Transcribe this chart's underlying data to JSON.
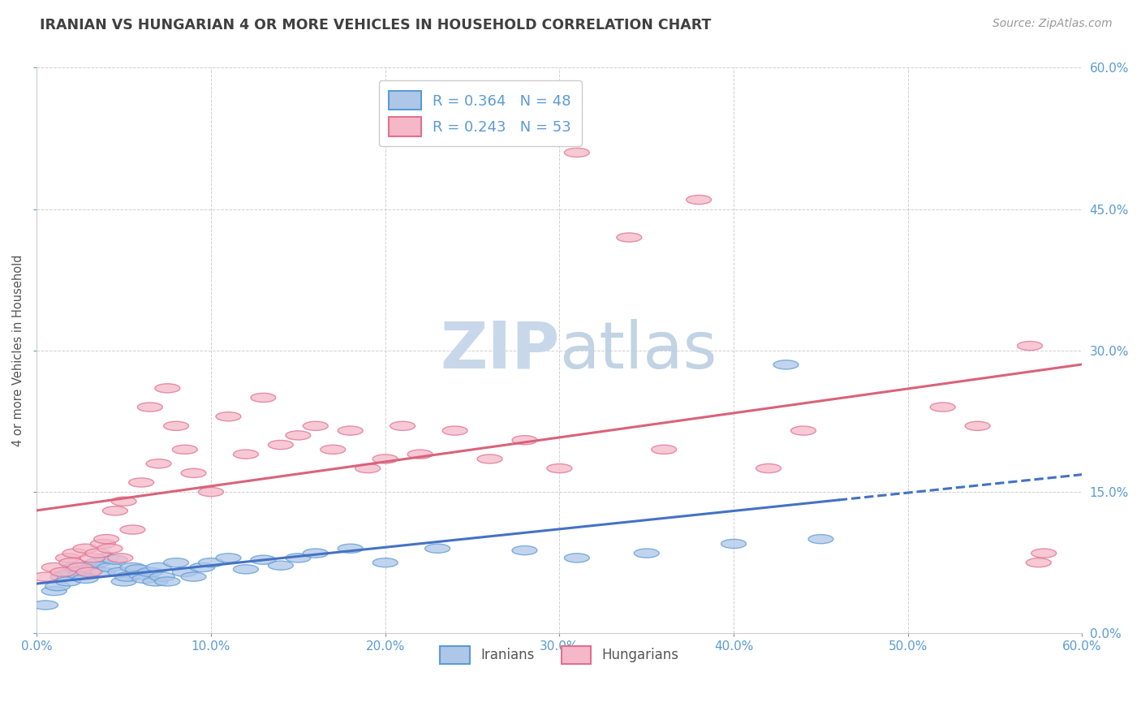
{
  "title": "IRANIAN VS HUNGARIAN 4 OR MORE VEHICLES IN HOUSEHOLD CORRELATION CHART",
  "source_text": "Source: ZipAtlas.com",
  "ylabel": "4 or more Vehicles in Household",
  "xlim": [
    0.0,
    0.6
  ],
  "ylim": [
    0.0,
    0.6
  ],
  "yticks": [
    0.0,
    0.15,
    0.3,
    0.45,
    0.6
  ],
  "xticks": [
    0.0,
    0.1,
    0.2,
    0.3,
    0.4,
    0.5,
    0.6
  ],
  "iranian_color_fill": "#aec6e8",
  "iranian_color_edge": "#5b9bd5",
  "hungarian_color_fill": "#f4b8c8",
  "hungarian_color_edge": "#e07090",
  "trend_iranian_color": "#4472c4",
  "trend_hungarian_color": "#d9637a",
  "background_color": "#ffffff",
  "grid_color": "#d0d0d0",
  "title_color": "#404040",
  "tick_color": "#5b9bd5",
  "watermark_text": "ZIPatlas",
  "watermark_color": "#cdd9e8",
  "legend_label_iranian": "R = 0.364   N = 48",
  "legend_label_hungarian": "R = 0.243   N = 53",
  "iranians_label": "Iranians",
  "hungarians_label": "Hungarians",
  "iranian_x": [
    0.005,
    0.01,
    0.012,
    0.015,
    0.018,
    0.02,
    0.022,
    0.025,
    0.028,
    0.03,
    0.032,
    0.035,
    0.038,
    0.04,
    0.042,
    0.045,
    0.048,
    0.05,
    0.052,
    0.055,
    0.058,
    0.06,
    0.062,
    0.065,
    0.068,
    0.07,
    0.072,
    0.075,
    0.08,
    0.085,
    0.09,
    0.095,
    0.1,
    0.11,
    0.12,
    0.13,
    0.14,
    0.15,
    0.16,
    0.18,
    0.2,
    0.23,
    0.28,
    0.31,
    0.35,
    0.4,
    0.43,
    0.45
  ],
  "iranian_y": [
    0.03,
    0.045,
    0.05,
    0.06,
    0.055,
    0.065,
    0.07,
    0.062,
    0.058,
    0.072,
    0.068,
    0.075,
    0.065,
    0.08,
    0.07,
    0.078,
    0.065,
    0.055,
    0.06,
    0.07,
    0.068,
    0.062,
    0.058,
    0.065,
    0.055,
    0.07,
    0.06,
    0.055,
    0.075,
    0.065,
    0.06,
    0.07,
    0.075,
    0.08,
    0.068,
    0.078,
    0.072,
    0.08,
    0.085,
    0.09,
    0.075,
    0.09,
    0.088,
    0.08,
    0.085,
    0.095,
    0.285,
    0.1
  ],
  "hungarian_x": [
    0.005,
    0.01,
    0.015,
    0.018,
    0.02,
    0.022,
    0.025,
    0.028,
    0.03,
    0.032,
    0.035,
    0.038,
    0.04,
    0.042,
    0.045,
    0.048,
    0.05,
    0.055,
    0.06,
    0.065,
    0.07,
    0.075,
    0.08,
    0.085,
    0.09,
    0.1,
    0.11,
    0.12,
    0.13,
    0.14,
    0.15,
    0.16,
    0.17,
    0.18,
    0.19,
    0.2,
    0.21,
    0.22,
    0.24,
    0.26,
    0.28,
    0.3,
    0.31,
    0.34,
    0.36,
    0.38,
    0.42,
    0.44,
    0.52,
    0.54,
    0.57,
    0.575,
    0.578
  ],
  "hungarian_y": [
    0.06,
    0.07,
    0.065,
    0.08,
    0.075,
    0.085,
    0.07,
    0.09,
    0.065,
    0.08,
    0.085,
    0.095,
    0.1,
    0.09,
    0.13,
    0.08,
    0.14,
    0.11,
    0.16,
    0.24,
    0.18,
    0.26,
    0.22,
    0.195,
    0.17,
    0.15,
    0.23,
    0.19,
    0.25,
    0.2,
    0.21,
    0.22,
    0.195,
    0.215,
    0.175,
    0.185,
    0.22,
    0.19,
    0.215,
    0.185,
    0.205,
    0.175,
    0.51,
    0.42,
    0.195,
    0.46,
    0.175,
    0.215,
    0.24,
    0.22,
    0.305,
    0.075,
    0.085
  ]
}
